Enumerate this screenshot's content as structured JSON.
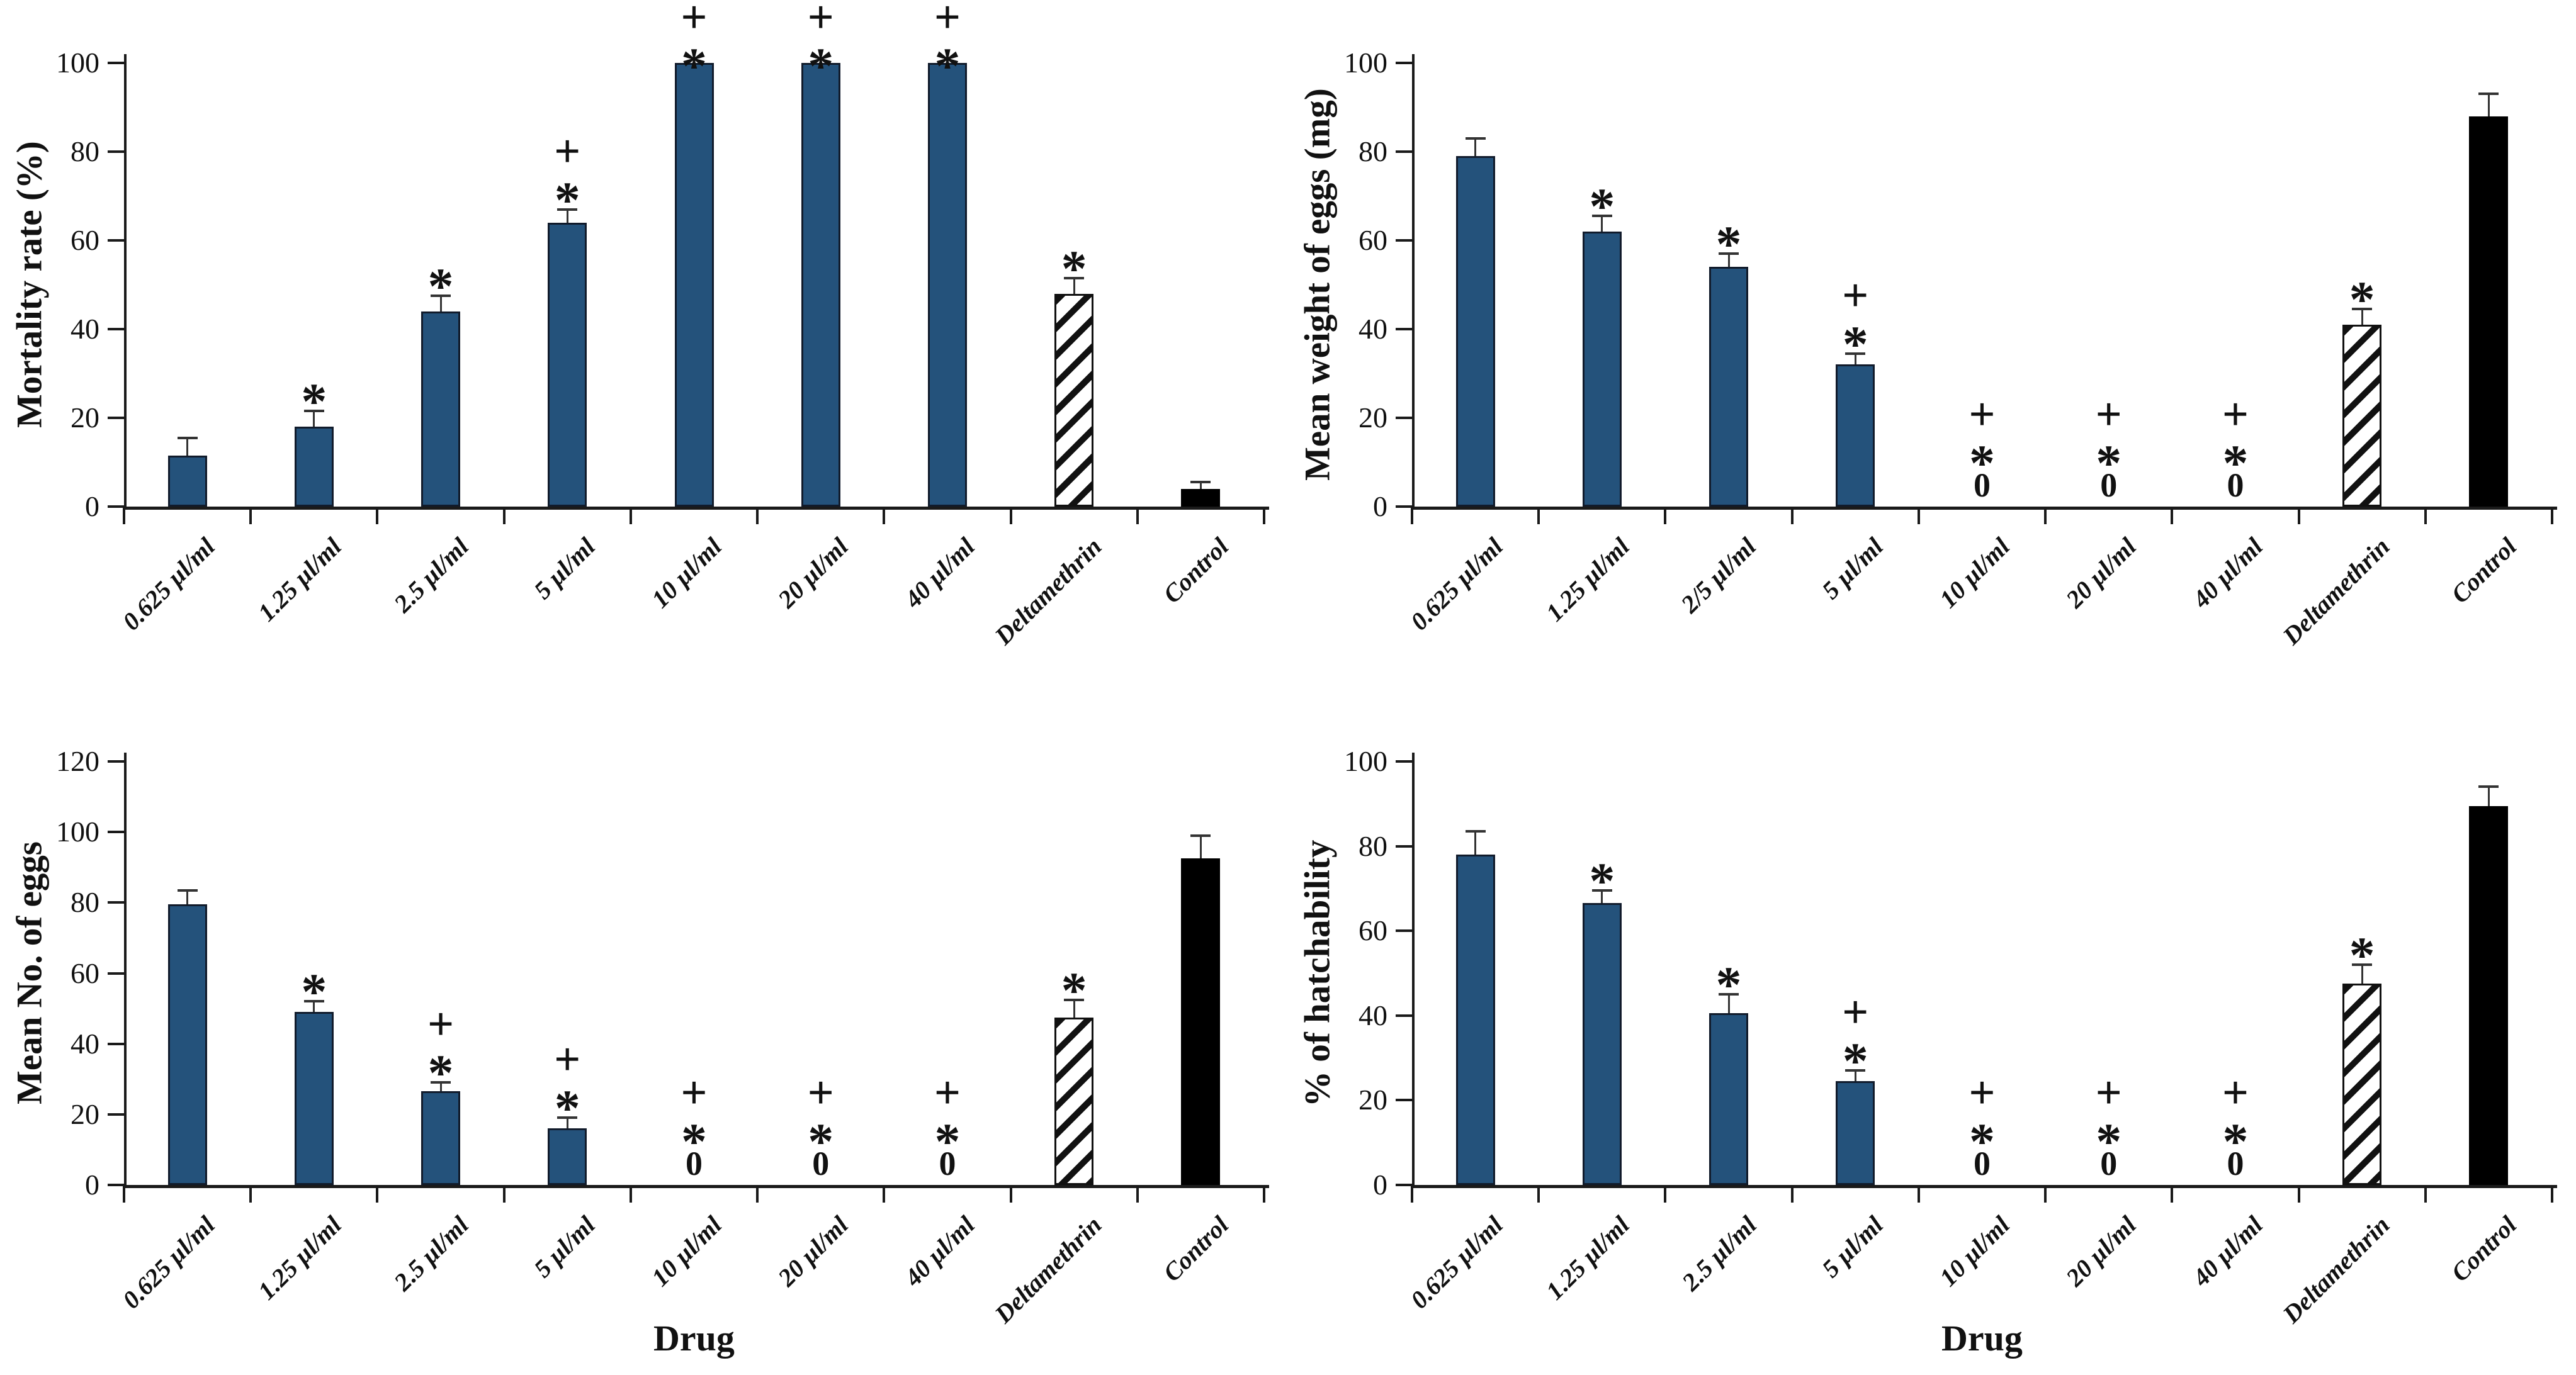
{
  "figure": {
    "background": "#ffffff",
    "title": ""
  },
  "colors": {
    "bar_blue": "#24527B",
    "bar_blue_border": "#111b2b",
    "bar_black": "#000000",
    "hatch_stripe": "#111111",
    "axis": "#1a1a1a",
    "error_bar": "#333333",
    "text": "#111111"
  },
  "symbols": {
    "plus": "+",
    "star": "*",
    "zero": "0"
  },
  "chart_data": [
    {
      "type": "bar",
      "title": "",
      "ylabel": "Mortality rate (%)",
      "xlabel": "",
      "ymax": 100,
      "yticks": [
        0,
        20,
        40,
        60,
        80,
        100
      ],
      "grid": false,
      "legend": false,
      "categories": [
        "0.625 µl/ml",
        "1.25 µl/ml",
        "2.5 µl/ml",
        "5 µl/ml",
        "10 µl/ml",
        "20 µl/ml",
        "40 µl/ml",
        "Deltamethrin",
        "Control"
      ],
      "values": [
        11.5,
        18,
        44,
        64,
        100,
        100,
        100,
        48,
        4
      ],
      "errors": [
        4,
        3.5,
        3.5,
        3,
        0,
        0,
        0,
        3.5,
        1.5
      ],
      "annotations": [
        [],
        [
          "*"
        ],
        [
          "*"
        ],
        [
          "+",
          "*"
        ],
        [
          "+",
          "*"
        ],
        [
          "+",
          "*"
        ],
        [
          "+",
          "*"
        ],
        [
          "*"
        ],
        []
      ],
      "bar_styles": [
        "blue",
        "blue",
        "blue",
        "blue",
        "blue",
        "blue",
        "blue",
        "hatch",
        "black"
      ]
    },
    {
      "type": "bar",
      "title": "",
      "ylabel": "Mean weight of eggs (mg)",
      "xlabel": "",
      "ymax": 100,
      "yticks": [
        0,
        20,
        40,
        60,
        80,
        100
      ],
      "grid": false,
      "legend": false,
      "categories": [
        "0.625 µl/ml",
        "1.25 µl/ml",
        "2/5 µl/ml",
        "5 µl/ml",
        "10 µl/ml",
        "20 µl/ml",
        "40 µl/ml",
        "Deltamethrin",
        "Control"
      ],
      "values": [
        79,
        62,
        54,
        32,
        0,
        0,
        0,
        41,
        88
      ],
      "errors": [
        4,
        3.5,
        3,
        2.5,
        0,
        0,
        0,
        3.5,
        5
      ],
      "annotations": [
        [],
        [
          "*"
        ],
        [
          "*"
        ],
        [
          "+",
          "*"
        ],
        [
          "+",
          "*",
          "0"
        ],
        [
          "+",
          "*",
          "0"
        ],
        [
          "+",
          "*",
          "0"
        ],
        [
          "*"
        ],
        []
      ],
      "bar_styles": [
        "blue",
        "blue",
        "blue",
        "blue",
        "blue",
        "blue",
        "blue",
        "hatch",
        "black"
      ]
    },
    {
      "type": "bar",
      "title": "",
      "ylabel": "Mean No. of eggs",
      "xlabel": "Drug",
      "ymax": 120,
      "yticks": [
        0,
        20,
        40,
        60,
        80,
        100,
        120
      ],
      "grid": false,
      "legend": false,
      "categories": [
        "0.625 µl/ml",
        "1.25 µl/ml",
        "2.5 µl/ml",
        "5 µl/ml",
        "10 µl/ml",
        "20 µl/ml",
        "40 µl/ml",
        "Deltamethrin",
        "Control"
      ],
      "values": [
        79.5,
        49,
        26.5,
        16,
        0,
        0,
        0,
        47.5,
        92.5
      ],
      "errors": [
        4,
        3,
        2.5,
        3,
        0,
        0,
        0,
        5,
        6.5
      ],
      "annotations": [
        [],
        [
          "*"
        ],
        [
          "+",
          "*"
        ],
        [
          "+",
          "*"
        ],
        [
          "+",
          "*",
          "0"
        ],
        [
          "+",
          "*",
          "0"
        ],
        [
          "+",
          "*",
          "0"
        ],
        [
          "*"
        ],
        []
      ],
      "bar_styles": [
        "blue",
        "blue",
        "blue",
        "blue",
        "blue",
        "blue",
        "blue",
        "hatch",
        "black"
      ]
    },
    {
      "type": "bar",
      "title": "",
      "ylabel": "% of hatchability",
      "xlabel": "Drug",
      "ymax": 100,
      "yticks": [
        0,
        20,
        40,
        60,
        80,
        100
      ],
      "grid": false,
      "legend": false,
      "categories": [
        "0.625 µl/ml",
        "1.25 µl/ml",
        "2.5 µl/ml",
        "5 µl/ml",
        "10 µl/ml",
        "20 µl/ml",
        "40 µl/ml",
        "Deltamethrin",
        "Control"
      ],
      "values": [
        78,
        66.5,
        40.5,
        24.5,
        0,
        0,
        0,
        47.5,
        89.5
      ],
      "errors": [
        5.5,
        3,
        4.5,
        2.5,
        0,
        0,
        0,
        4.5,
        4.5
      ],
      "annotations": [
        [],
        [
          "*"
        ],
        [
          "*"
        ],
        [
          "+",
          "*"
        ],
        [
          "+",
          "*",
          "0"
        ],
        [
          "+",
          "*",
          "0"
        ],
        [
          "+",
          "*",
          "0"
        ],
        [
          "*"
        ],
        []
      ],
      "bar_styles": [
        "blue",
        "blue",
        "blue",
        "blue",
        "blue",
        "blue",
        "blue",
        "hatch",
        "black"
      ]
    }
  ]
}
